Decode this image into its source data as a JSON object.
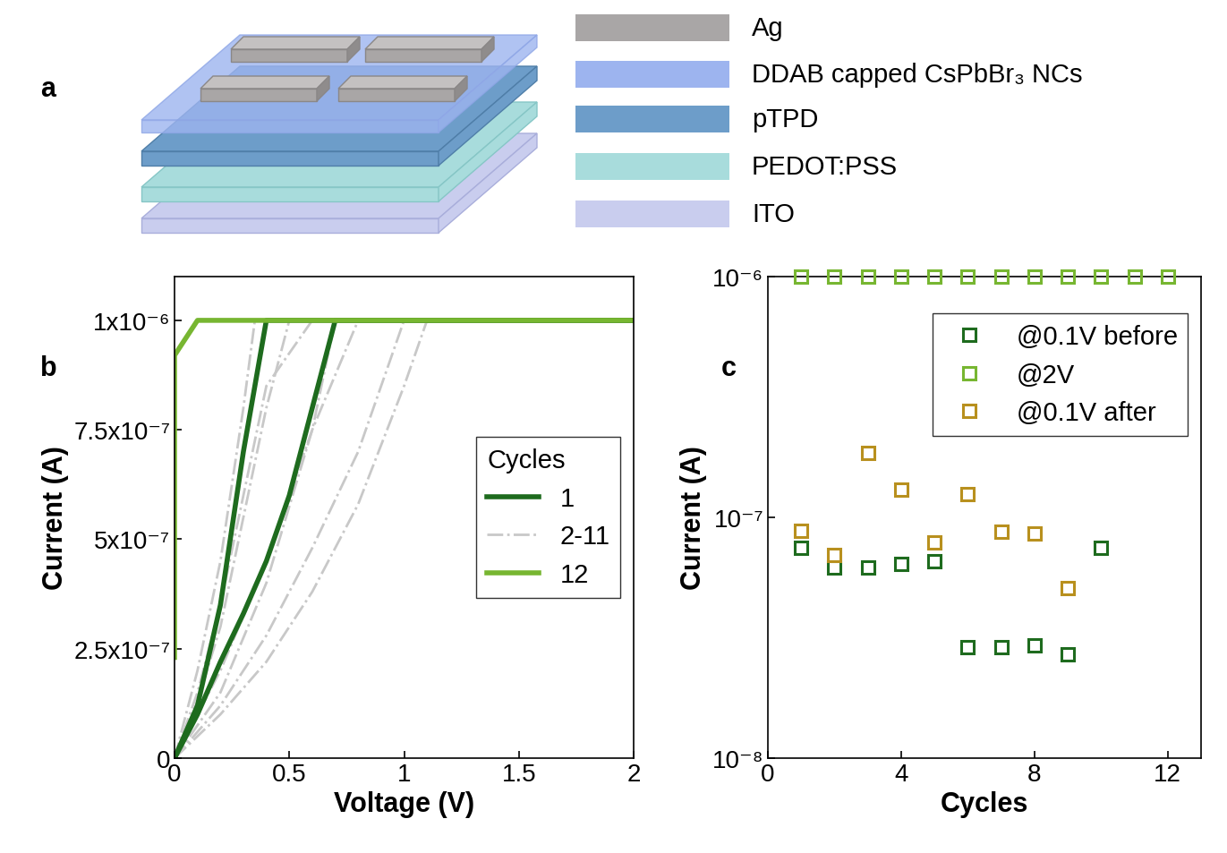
{
  "diagram": {
    "panel": "a",
    "layers": [
      {
        "label": "Ag"
      },
      {
        "label": "DDAB capped CsPbBr₃ NCs"
      },
      {
        "label": "pTPD"
      },
      {
        "label": "PEDOT:PSS"
      },
      {
        "label": "ITO"
      }
    ]
  },
  "chart_data": [
    {
      "type": "line",
      "panel": "b",
      "x_label": "Voltage (V)",
      "y_label": "Current (A)",
      "xlim": [
        0,
        2
      ],
      "xticks": [
        0,
        0.5,
        1,
        1.5,
        2
      ],
      "ylim": [
        0,
        1.1e-06
      ],
      "yticks": [
        0,
        {
          "value": 2.5e-07,
          "label": "2.5x10⁻⁷"
        },
        {
          "value": 5e-07,
          "label": "5x10⁻⁷"
        },
        {
          "value": 7.5e-07,
          "label": "7.5x10⁻⁷"
        },
        {
          "value": 1e-06,
          "label": "1x10⁻⁶"
        }
      ],
      "legend": "center right",
      "legend_title": "Cycles",
      "series": [
        {
          "name": "1",
          "color": "#1e6b1e",
          "line_style": "solid",
          "x": [
            0,
            0.1,
            0.2,
            0.3,
            0.4,
            2
          ],
          "values": [
            0,
            1.2e-07,
            3.5e-07,
            7e-07,
            1e-06,
            1e-06
          ]
        },
        {
          "name": "1",
          "color": "#1e6b1e",
          "line_style": "solid",
          "x": [
            0,
            0.1,
            0.2,
            0.3,
            0.4,
            0.5,
            0.6,
            0.7,
            2
          ],
          "values": [
            0,
            1e-07,
            2.2e-07,
            3.3e-07,
            4.5e-07,
            6e-07,
            8e-07,
            1e-06,
            1e-06
          ]
        },
        {
          "name": "2-11",
          "color": "#c8c8c8",
          "line_style": "dashdot",
          "x": [
            0,
            0.1,
            0.2,
            0.3,
            0.35,
            2
          ],
          "values": [
            0,
            2e-07,
            4.5e-07,
            8e-07,
            1e-06,
            1e-06
          ]
        },
        {
          "name": "2-11",
          "color": "#c8c8c8",
          "line_style": "dashdot",
          "x": [
            0,
            0.1,
            0.2,
            0.3,
            0.4,
            0.5,
            2
          ],
          "values": [
            0,
            1.3e-07,
            3e-07,
            5.5e-07,
            8e-07,
            1e-06,
            1e-06
          ]
        },
        {
          "name": "2-11",
          "color": "#c8c8c8",
          "line_style": "dashdot",
          "x": [
            0,
            0.2,
            0.4,
            0.6,
            0.8,
            2
          ],
          "values": [
            0,
            2e-07,
            4.5e-07,
            7.5e-07,
            1e-06,
            1e-06
          ]
        },
        {
          "name": "2-11",
          "color": "#c8c8c8",
          "line_style": "dashdot",
          "x": [
            0,
            0.2,
            0.4,
            0.6,
            0.8,
            1.0,
            1.1,
            2
          ],
          "values": [
            0,
            1e-07,
            2.2e-07,
            3.8e-07,
            5.8e-07,
            8.5e-07,
            1e-06,
            1e-06
          ]
        },
        {
          "name": "2-11",
          "color": "#c8c8c8",
          "line_style": "dashdot",
          "x": [
            0,
            0.2,
            0.4,
            0.6,
            0.8,
            1.0,
            2
          ],
          "values": [
            0,
            1.2e-07,
            2.8e-07,
            4.8e-07,
            7e-07,
            1e-06,
            1e-06
          ]
        },
        {
          "name": "2-11",
          "color": "#c8c8c8",
          "line_style": "dashdot",
          "x": [
            0,
            0.1,
            0.2,
            0.3,
            0.4,
            0.6,
            2
          ],
          "values": [
            0,
            1.5e-07,
            3.5e-07,
            6e-07,
            8.5e-07,
            1e-06,
            1e-06
          ]
        },
        {
          "name": "2-11",
          "color": "#c8c8c8",
          "line_style": "dashdot",
          "x": [
            0,
            0.2,
            0.4,
            0.6,
            0.7,
            2
          ],
          "values": [
            0,
            1.5e-07,
            4e-07,
            7.5e-07,
            1e-06,
            1e-06
          ]
        },
        {
          "name": "12",
          "color": "#77b631",
          "line_style": "solid",
          "x": [
            0,
            0,
            0.1,
            2
          ],
          "values": [
            2.3e-07,
            9.2e-07,
            1e-06,
            1e-06
          ]
        }
      ]
    },
    {
      "type": "scatter",
      "panel": "c",
      "log": "y",
      "x_label": "Cycles",
      "y_label": "Current (A)",
      "xlim": [
        0,
        13
      ],
      "xticks": [
        0,
        4,
        8,
        12
      ],
      "ylim": [
        1e-08,
        1e-06
      ],
      "yticks": [
        {
          "value": 1e-08,
          "label": "10⁻⁸"
        },
        {
          "value": 1e-07,
          "label": "10⁻⁷"
        },
        {
          "value": 1e-06,
          "label": "10⁻⁶"
        }
      ],
      "legend": "upper right",
      "series": [
        {
          "name": "@0.1V before",
          "color": "#1e6b1e",
          "marker": "square",
          "x": [
            1,
            2,
            3,
            4,
            5,
            6,
            7,
            8,
            9,
            10
          ],
          "values": [
            7.5e-08,
            6.2e-08,
            6.2e-08,
            6.4e-08,
            6.6e-08,
            2.9e-08,
            2.9e-08,
            2.95e-08,
            2.7e-08,
            7.5e-08
          ]
        },
        {
          "name": "@2V",
          "color": "#77b631",
          "marker": "square",
          "x": [
            1,
            2,
            3,
            4,
            5,
            6,
            7,
            8,
            9,
            10,
            11,
            12
          ],
          "values": [
            1e-06,
            1e-06,
            1e-06,
            1e-06,
            1e-06,
            1e-06,
            1e-06,
            1e-06,
            1e-06,
            1e-06,
            1e-06,
            1e-06
          ]
        },
        {
          "name": "@0.1V after",
          "color": "#b8901e",
          "marker": "square",
          "x": [
            1,
            2,
            3,
            4,
            5,
            6,
            7,
            8,
            9
          ],
          "values": [
            8.8e-08,
            7e-08,
            1.85e-07,
            1.3e-07,
            7.9e-08,
            1.25e-07,
            8.7e-08,
            8.6e-08,
            5.1e-08
          ]
        }
      ]
    }
  ]
}
